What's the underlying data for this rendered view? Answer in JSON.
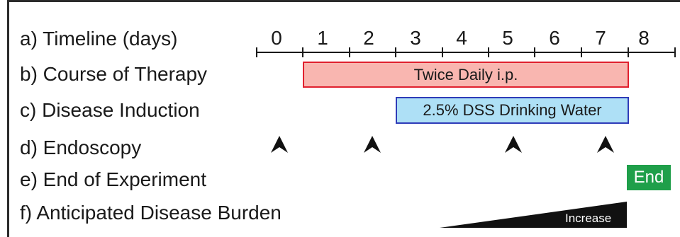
{
  "rows": {
    "a": "a) Timeline (days)",
    "b": "b) Course of Therapy",
    "c": "c) Disease Induction",
    "d": "d) Endoscopy",
    "e": "e) End of Experiment",
    "f": "f) Anticipated Disease Burden"
  },
  "timeline": {
    "ticks": [
      "0",
      "1",
      "2",
      "3",
      "4",
      "5",
      "6",
      "7",
      "8"
    ]
  },
  "therapy": {
    "label": "Twice Daily i.p.",
    "start_day": 0.5,
    "end_day": 7.5,
    "fill": "#f9b6b0",
    "border": "#e0202e"
  },
  "induction": {
    "label": "2.5% DSS Drinking Water",
    "start_day": 2.5,
    "end_day": 7.5,
    "fill": "#aee0f6",
    "border": "#2f3bb8"
  },
  "endoscopy_days": [
    0,
    2,
    5,
    7
  ],
  "end_marker": {
    "label": "End",
    "day": 8,
    "color": "#1f9f4a"
  },
  "burden": {
    "label": "Increase",
    "start_day": 4,
    "end_day": 7.5,
    "color": "#111111"
  }
}
